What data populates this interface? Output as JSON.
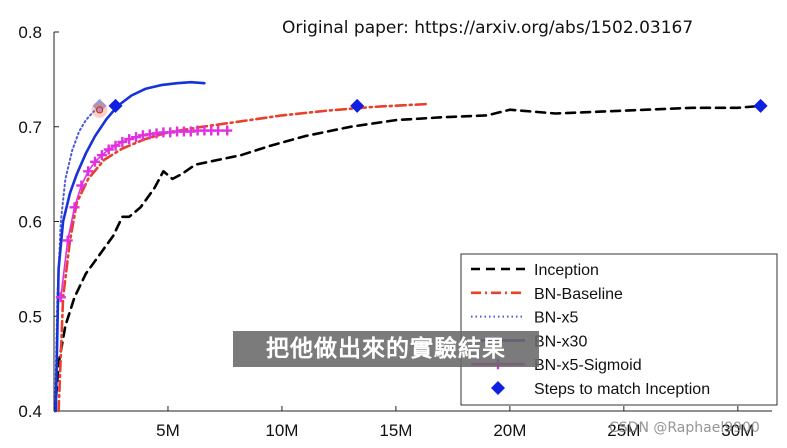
{
  "source_note": "Original paper: https://arxiv.org/abs/1502.03167",
  "overlay_caption": "把他做出來的實驗結果",
  "watermark": "CSDN @Raphael9900",
  "chart_data": {
    "type": "line",
    "xlim": [
      0,
      31500000
    ],
    "ylim": [
      0.4,
      0.8
    ],
    "y_ticks": [
      0.4,
      0.5,
      0.6,
      0.7,
      0.8
    ],
    "y_tick_labels": [
      "0.4",
      "0.5",
      "0.6",
      "0.7",
      "0.8"
    ],
    "x_ticks": [
      5000000,
      10000000,
      15000000,
      20000000,
      25000000,
      30000000
    ],
    "x_tick_labels": [
      "5M",
      "10M",
      "15M",
      "20M",
      "25M",
      "30M"
    ],
    "grid": false,
    "legend_position": "bottom-right",
    "series": [
      {
        "name": "Inception",
        "color": "#000000",
        "style": "dashed",
        "marker": "none",
        "x": [
          50000,
          200000,
          500000,
          900000,
          1400000,
          2000000,
          2600000,
          3000000,
          3300000,
          3800000,
          4400000,
          4800000,
          5200000,
          5600000,
          6200000,
          7200000,
          8200000,
          9500000,
          11000000,
          13000000,
          15000000,
          17000000,
          19000000,
          20000000,
          22000000,
          24000000,
          26000000,
          28000000,
          30000000,
          31000000
        ],
        "y": [
          0.4,
          0.45,
          0.49,
          0.52,
          0.545,
          0.565,
          0.585,
          0.605,
          0.605,
          0.615,
          0.635,
          0.653,
          0.645,
          0.65,
          0.66,
          0.665,
          0.67,
          0.68,
          0.69,
          0.7,
          0.707,
          0.71,
          0.712,
          0.718,
          0.714,
          0.716,
          0.718,
          0.72,
          0.72,
          0.722
        ]
      },
      {
        "name": "BN-Baseline",
        "color": "#e8402a",
        "style": "dashdot",
        "marker": "none",
        "x": [
          200000,
          400000,
          700000,
          1000000,
          1500000,
          2200000,
          3000000,
          4000000,
          5000000,
          6500000,
          8000000,
          10000000,
          12000000,
          14000000,
          16400000
        ],
        "y": [
          0.4,
          0.52,
          0.58,
          0.62,
          0.645,
          0.665,
          0.677,
          0.687,
          0.694,
          0.7,
          0.705,
          0.712,
          0.717,
          0.721,
          0.724
        ]
      },
      {
        "name": "BN-x5",
        "color": "#4a5cd6",
        "style": "dotted",
        "marker": "none",
        "x": [
          50000,
          150000,
          300000,
          500000,
          800000,
          1100000,
          1400000,
          1700000,
          2000000
        ],
        "y": [
          0.4,
          0.52,
          0.6,
          0.645,
          0.675,
          0.695,
          0.707,
          0.715,
          0.722
        ]
      },
      {
        "name": "BN-x30",
        "color": "#1632d8",
        "style": "solid",
        "marker": "none",
        "x": [
          80000,
          200000,
          400000,
          700000,
          1000000,
          1400000,
          1800000,
          2300000,
          2800000,
          3400000,
          4000000,
          4700000,
          5400000,
          6000000,
          6600000
        ],
        "y": [
          0.4,
          0.55,
          0.6,
          0.63,
          0.65,
          0.672,
          0.69,
          0.708,
          0.722,
          0.733,
          0.74,
          0.744,
          0.746,
          0.747,
          0.746
        ]
      },
      {
        "name": "BN-x5-Sigmoid",
        "color": "#e030e0",
        "style": "solid",
        "marker": "plus",
        "x": [
          300000,
          600000,
          900000,
          1200000,
          1500000,
          1800000,
          2100000,
          2400000,
          2700000,
          3000000,
          3300000,
          3600000,
          3900000,
          4200000,
          4500000,
          4800000,
          5100000,
          5400000,
          5700000,
          6000000,
          6300000,
          6600000,
          6900000,
          7200000,
          7600000
        ],
        "y": [
          0.52,
          0.58,
          0.615,
          0.638,
          0.653,
          0.663,
          0.67,
          0.676,
          0.68,
          0.684,
          0.687,
          0.689,
          0.691,
          0.692,
          0.693,
          0.694,
          0.694,
          0.695,
          0.695,
          0.695,
          0.696,
          0.696,
          0.696,
          0.696,
          0.696
        ]
      }
    ],
    "steps_markers": {
      "name": "Steps to match Inception",
      "color": "#1020e0",
      "marker": "diamond",
      "points": [
        {
          "x": 2000000,
          "y": 0.722
        },
        {
          "x": 2700000,
          "y": 0.722
        },
        {
          "x": 13300000,
          "y": 0.722
        },
        {
          "x": 31000000,
          "y": 0.722
        }
      ]
    }
  }
}
